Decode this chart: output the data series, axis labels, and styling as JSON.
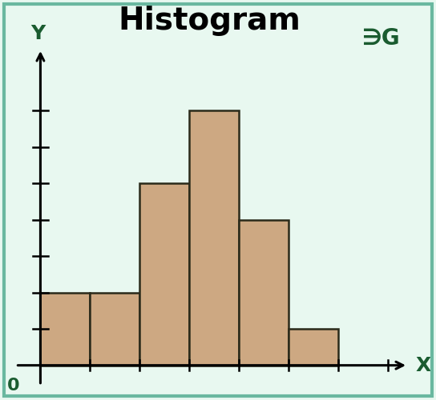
{
  "title": "Histogram",
  "title_fontsize": 28,
  "title_fontweight": "bold",
  "bar_heights": [
    2,
    2,
    5,
    7,
    4,
    1
  ],
  "bar_color": "#CDA882",
  "bar_edgecolor": "#2a2a1a",
  "bar_linewidth": 1.8,
  "background_color": "#e8f8f0",
  "figure_edgecolor": "#6ab8a0",
  "axis_color": "#000000",
  "label_color": "#1a5c30",
  "xlabel": "X",
  "ylabel": "Y",
  "origin_label": "0",
  "num_yticks": 7,
  "num_xticks": 7,
  "gg_logo_color": "#1a5c30"
}
